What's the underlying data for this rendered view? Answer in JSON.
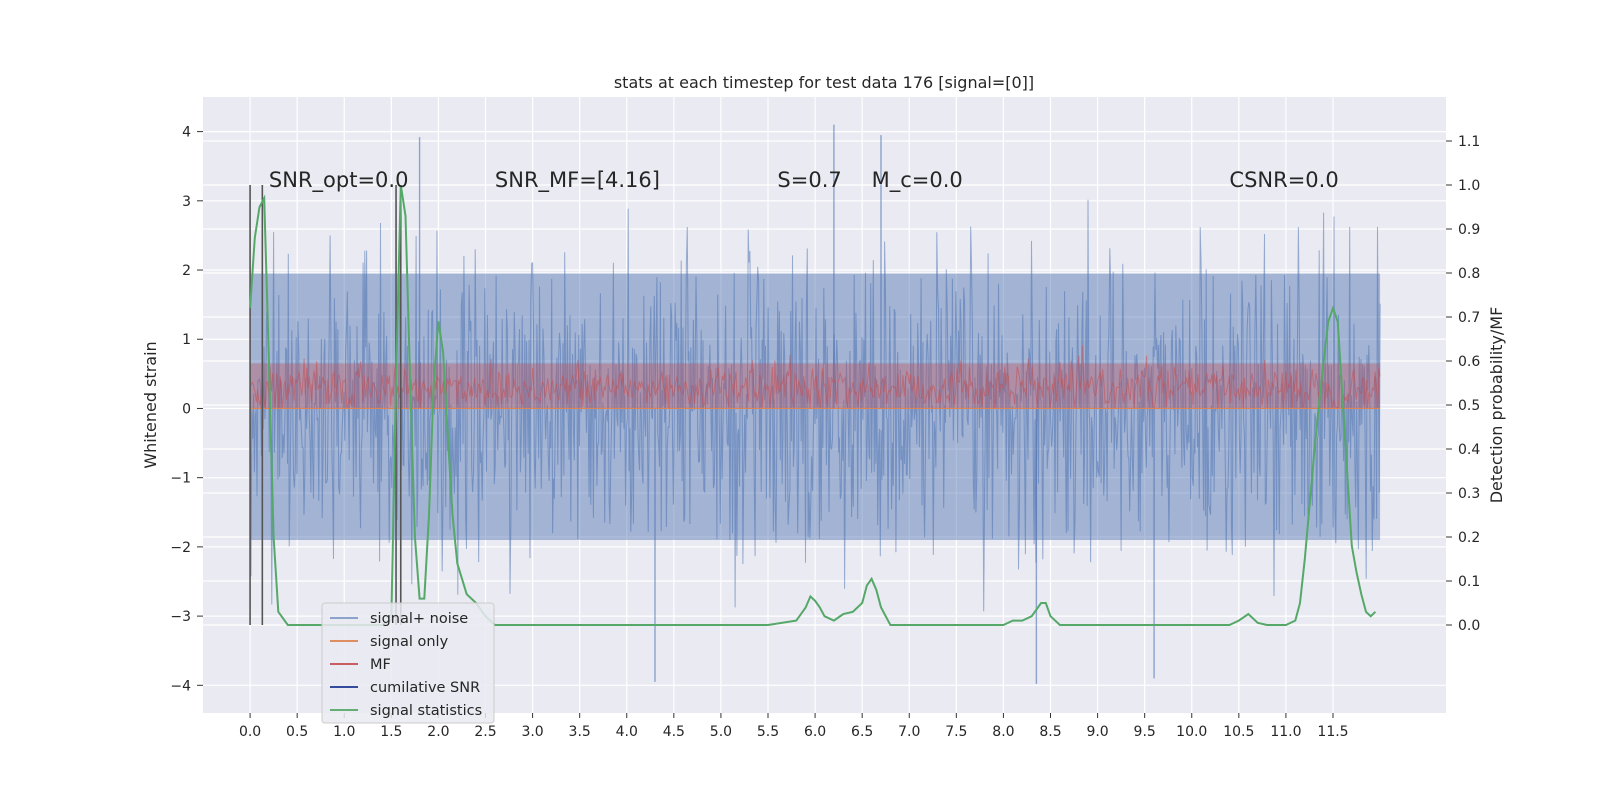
{
  "chart_data": {
    "type": "line",
    "title": "stats at each timestep for test data 176 [signal=[0]]",
    "xlabel": "",
    "ylabel": "Whitened strain",
    "ylabel_right": "Detection probability/MF",
    "xlim": [
      -0.5,
      12.7
    ],
    "ylim": [
      -4.4,
      4.5
    ],
    "ylim_right": [
      -0.2,
      1.2
    ],
    "grid": true,
    "x_ticks": [
      0.0,
      0.5,
      1.0,
      1.5,
      2.0,
      2.5,
      3.0,
      3.5,
      4.0,
      4.5,
      5.0,
      5.5,
      6.0,
      6.5,
      7.0,
      7.5,
      8.0,
      8.5,
      9.0,
      9.5,
      10.0,
      10.5,
      11.0,
      11.5
    ],
    "x_tick_labels": [
      "0.0",
      "0.5",
      "1.0",
      "1.5",
      "2.0",
      "2.5",
      "3.0",
      "3.5",
      "4.0",
      "4.5",
      "5.0",
      "5.5",
      "6.0",
      "6.5",
      "7.0",
      "7.5",
      "8.0",
      "8.5",
      "9.0",
      "9.5",
      "10.0",
      "10.5",
      "11.0",
      "11.5"
    ],
    "y_ticks": [
      -4,
      -3,
      -2,
      -1,
      0,
      1,
      2,
      3,
      4
    ],
    "y_tick_labels": [
      "−4",
      "−3",
      "−2",
      "−1",
      "0",
      "1",
      "2",
      "3",
      "4"
    ],
    "y_right_ticks": [
      0.0,
      0.1,
      0.2,
      0.3,
      0.4,
      0.5,
      0.6,
      0.7,
      0.8,
      0.9,
      1.0,
      1.1
    ],
    "y_right_tick_labels": [
      "0.0",
      "0.1",
      "0.2",
      "0.3",
      "0.4",
      "0.5",
      "0.6",
      "0.7",
      "0.8",
      "0.9",
      "1.0",
      "1.1"
    ],
    "annotations": [
      {
        "text": "SNR_opt=0.0",
        "x": 0.2,
        "y": 3.3
      },
      {
        "text": "SNR_MF=[4.16]",
        "x": 2.6,
        "y": 3.3
      },
      {
        "text": "S=0.7",
        "x": 5.6,
        "y": 3.3
      },
      {
        "text": "M_c=0.0",
        "x": 6.6,
        "y": 3.3
      },
      {
        "text": "CSNR=0.0",
        "x": 10.4,
        "y": 3.3
      }
    ],
    "legend_position": "lower-left",
    "series": [
      {
        "name": "signal+ noise",
        "color": "#4c72b0",
        "axis": "left",
        "style": "dense-noise",
        "x_range": [
          0.0,
          12.0
        ],
        "core_band": [
          -1.9,
          1.95
        ],
        "outer_range": [
          -4.0,
          4.1
        ],
        "notable_peaks": [
          {
            "x": 1.8,
            "y": 3.92
          },
          {
            "x": 6.2,
            "y": 4.1
          },
          {
            "x": 6.7,
            "y": 3.95
          },
          {
            "x": 4.3,
            "y": -3.95
          },
          {
            "x": 8.35,
            "y": -3.98
          },
          {
            "x": 9.6,
            "y": -3.9
          }
        ]
      },
      {
        "name": "signal only",
        "color": "#dd8452",
        "axis": "left",
        "style": "line",
        "x": [
          0.0,
          12.0
        ],
        "y": [
          0.0,
          0.0
        ]
      },
      {
        "name": "MF",
        "color": "#c44e52",
        "axis": "left",
        "style": "dense-band",
        "x_range": [
          0.0,
          12.0
        ],
        "band": [
          0.0,
          0.65
        ],
        "outer_max": 0.95
      },
      {
        "name": "cumilative SNR",
        "color": "#1f3a93",
        "axis": "left",
        "style": "line",
        "x": [],
        "y": []
      },
      {
        "name": "signal statistics",
        "color": "#55a868",
        "axis": "right",
        "style": "line",
        "x": [
          0.0,
          0.05,
          0.1,
          0.15,
          0.2,
          0.25,
          0.3,
          0.4,
          0.6,
          0.8,
          1.0,
          1.2,
          1.4,
          1.5,
          1.55,
          1.6,
          1.65,
          1.7,
          1.75,
          1.8,
          1.85,
          1.9,
          1.95,
          2.0,
          2.05,
          2.1,
          2.15,
          2.2,
          2.3,
          2.4,
          2.5,
          2.6,
          2.8,
          3.0,
          3.5,
          4.0,
          4.5,
          5.0,
          5.5,
          5.8,
          5.9,
          5.95,
          6.0,
          6.05,
          6.1,
          6.2,
          6.3,
          6.4,
          6.5,
          6.55,
          6.6,
          6.65,
          6.7,
          6.8,
          6.9,
          7.0,
          7.5,
          8.0,
          8.1,
          8.2,
          8.3,
          8.4,
          8.45,
          8.5,
          8.6,
          8.7,
          9.0,
          9.5,
          10.0,
          10.4,
          10.5,
          10.6,
          10.7,
          10.8,
          10.9,
          11.0,
          11.1,
          11.15,
          11.2,
          11.25,
          11.3,
          11.35,
          11.4,
          11.45,
          11.5,
          11.55,
          11.6,
          11.65,
          11.7,
          11.75,
          11.8,
          11.85,
          11.9,
          11.95
        ],
        "y": [
          0.72,
          0.88,
          0.95,
          0.97,
          0.6,
          0.2,
          0.03,
          0.0,
          0.0,
          0.0,
          0.0,
          0.0,
          0.0,
          0.01,
          0.55,
          1.0,
          0.93,
          0.55,
          0.2,
          0.06,
          0.06,
          0.25,
          0.55,
          0.69,
          0.62,
          0.43,
          0.25,
          0.14,
          0.07,
          0.05,
          0.02,
          0.0,
          0.0,
          0.0,
          0.0,
          0.0,
          0.0,
          0.0,
          0.0,
          0.01,
          0.04,
          0.065,
          0.055,
          0.04,
          0.02,
          0.01,
          0.025,
          0.03,
          0.05,
          0.09,
          0.105,
          0.08,
          0.04,
          0.0,
          0.0,
          0.0,
          0.0,
          0.0,
          0.01,
          0.01,
          0.02,
          0.05,
          0.05,
          0.02,
          0.0,
          0.0,
          0.0,
          0.0,
          0.0,
          0.0,
          0.01,
          0.025,
          0.005,
          0.0,
          0.0,
          0.0,
          0.01,
          0.05,
          0.15,
          0.27,
          0.39,
          0.5,
          0.6,
          0.69,
          0.72,
          0.69,
          0.52,
          0.35,
          0.18,
          0.12,
          0.07,
          0.03,
          0.02,
          0.03
        ]
      }
    ],
    "vertical_lines": [
      {
        "x": 0.0,
        "color": "#555555"
      },
      {
        "x": 0.13,
        "color": "#555555"
      },
      {
        "x": 1.55,
        "color": "#555555"
      },
      {
        "x": 1.6,
        "color": "#555555"
      }
    ]
  }
}
